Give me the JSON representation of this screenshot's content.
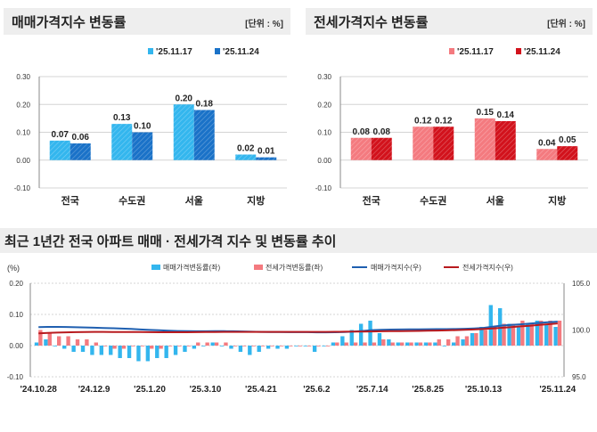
{
  "colors": {
    "sale_light": "#33b6ee",
    "sale_dark": "#1a72c8",
    "jeonse_light": "#f47a7f",
    "jeonse_dark": "#d2121c",
    "sale_index_line": "#1f5fb0",
    "jeonse_index_line": "#b81a1e",
    "grid": "#d4d4d4",
    "axis": "#888888"
  },
  "chart_data": [
    {
      "id": "sale-weekly",
      "type": "bar",
      "title": "매매가격지수 변동률",
      "unit_label": "[단위 : %]",
      "categories": [
        "전국",
        "수도권",
        "서울",
        "지방"
      ],
      "series": [
        {
          "name": "'25.11.17",
          "values": [
            0.07,
            0.13,
            0.2,
            0.02
          ],
          "labels": [
            "0.07",
            "0.13",
            "0.20",
            "0.02"
          ]
        },
        {
          "name": "'25.11.24",
          "values": [
            0.06,
            0.1,
            0.18,
            0.01
          ],
          "labels": [
            "0.06",
            "0.10",
            "0.18",
            "0.01"
          ]
        }
      ],
      "yticks": [
        "0.30",
        "0.20",
        "0.10",
        "0.00",
        "-0.10"
      ],
      "ylim": [
        -0.1,
        0.3
      ],
      "legend_position": "top-right"
    },
    {
      "id": "jeonse-weekly",
      "type": "bar",
      "title": "전세가격지수 변동률",
      "unit_label": "[단위 : %]",
      "categories": [
        "전국",
        "수도권",
        "서울",
        "지방"
      ],
      "series": [
        {
          "name": "'25.11.17",
          "values": [
            0.08,
            0.12,
            0.15,
            0.04
          ],
          "labels": [
            "0.08",
            "0.12",
            "0.15",
            "0.04"
          ]
        },
        {
          "name": "'25.11.24",
          "values": [
            0.08,
            0.12,
            0.14,
            0.05
          ],
          "labels": [
            "0.08",
            "0.12",
            "0.14",
            "0.05"
          ]
        }
      ],
      "yticks": [
        "0.30",
        "0.20",
        "0.10",
        "0.00",
        "-0.10"
      ],
      "ylim": [
        -0.1,
        0.3
      ],
      "legend_position": "top-right"
    },
    {
      "id": "yearly-trend",
      "type": "bar+line",
      "title": "최근 1년간 전국 아파트 매매 · 전세가격 지수 및 변동률 추이",
      "left_axis_unit": "(%)",
      "left_ylim": [
        -0.1,
        0.2
      ],
      "left_yticks": [
        "0.20",
        "0.10",
        "0.00",
        "-0.10"
      ],
      "right_ylim": [
        95.0,
        105.0
      ],
      "right_yticks": [
        "105.0",
        "100.0",
        "95.0"
      ],
      "legend": [
        "매매가격변동률(좌)",
        "전세가격변동률(좌)",
        "매매가격지수(우)",
        "전세가격지수(우)"
      ],
      "x_tick_labels": [
        "'24.10.28",
        "'24.12.9",
        "'25.1.20",
        "'25.3.10",
        "'25.4.21",
        "'25.6.2",
        "'25.7.14",
        "'25.8.25",
        "'25.10.13",
        "'25.11.24"
      ],
      "x_tick_week_index": [
        0,
        6,
        12,
        18,
        24,
        30,
        36,
        42,
        48,
        56
      ],
      "sale_change": [
        0.01,
        0.02,
        0.0,
        -0.01,
        -0.02,
        -0.02,
        -0.03,
        -0.03,
        -0.03,
        -0.04,
        -0.04,
        -0.05,
        -0.05,
        -0.04,
        -0.04,
        -0.03,
        -0.02,
        -0.01,
        0.0,
        0.01,
        0.0,
        -0.01,
        -0.02,
        -0.03,
        -0.02,
        -0.01,
        -0.01,
        -0.01,
        0.0,
        0.0,
        -0.02,
        0.0,
        0.01,
        0.03,
        0.05,
        0.07,
        0.08,
        0.04,
        0.02,
        0.01,
        0.01,
        0.01,
        0.01,
        0.01,
        0.0,
        0.01,
        0.02,
        0.04,
        0.06,
        0.13,
        0.12,
        0.07,
        0.06,
        0.07,
        0.08,
        0.07,
        0.06
      ],
      "jeonse_change": [
        0.05,
        0.04,
        0.03,
        0.03,
        0.02,
        0.02,
        0.01,
        0.0,
        -0.01,
        -0.01,
        0.0,
        0.0,
        -0.01,
        -0.01,
        0.0,
        0.0,
        0.0,
        0.01,
        0.01,
        0.01,
        0.01,
        0.0,
        0.0,
        0.0,
        0.0,
        0.0,
        0.0,
        0.0,
        0.0,
        0.0,
        0.0,
        0.0,
        0.01,
        0.01,
        0.01,
        0.01,
        0.01,
        0.02,
        0.01,
        0.01,
        0.01,
        0.01,
        0.01,
        0.02,
        0.02,
        0.03,
        0.03,
        0.04,
        0.05,
        0.06,
        0.07,
        0.07,
        0.08,
        0.07,
        0.08,
        0.08,
        0.08
      ],
      "sale_index_start": 100.3,
      "jeonse_index_start": 99.6
    }
  ]
}
